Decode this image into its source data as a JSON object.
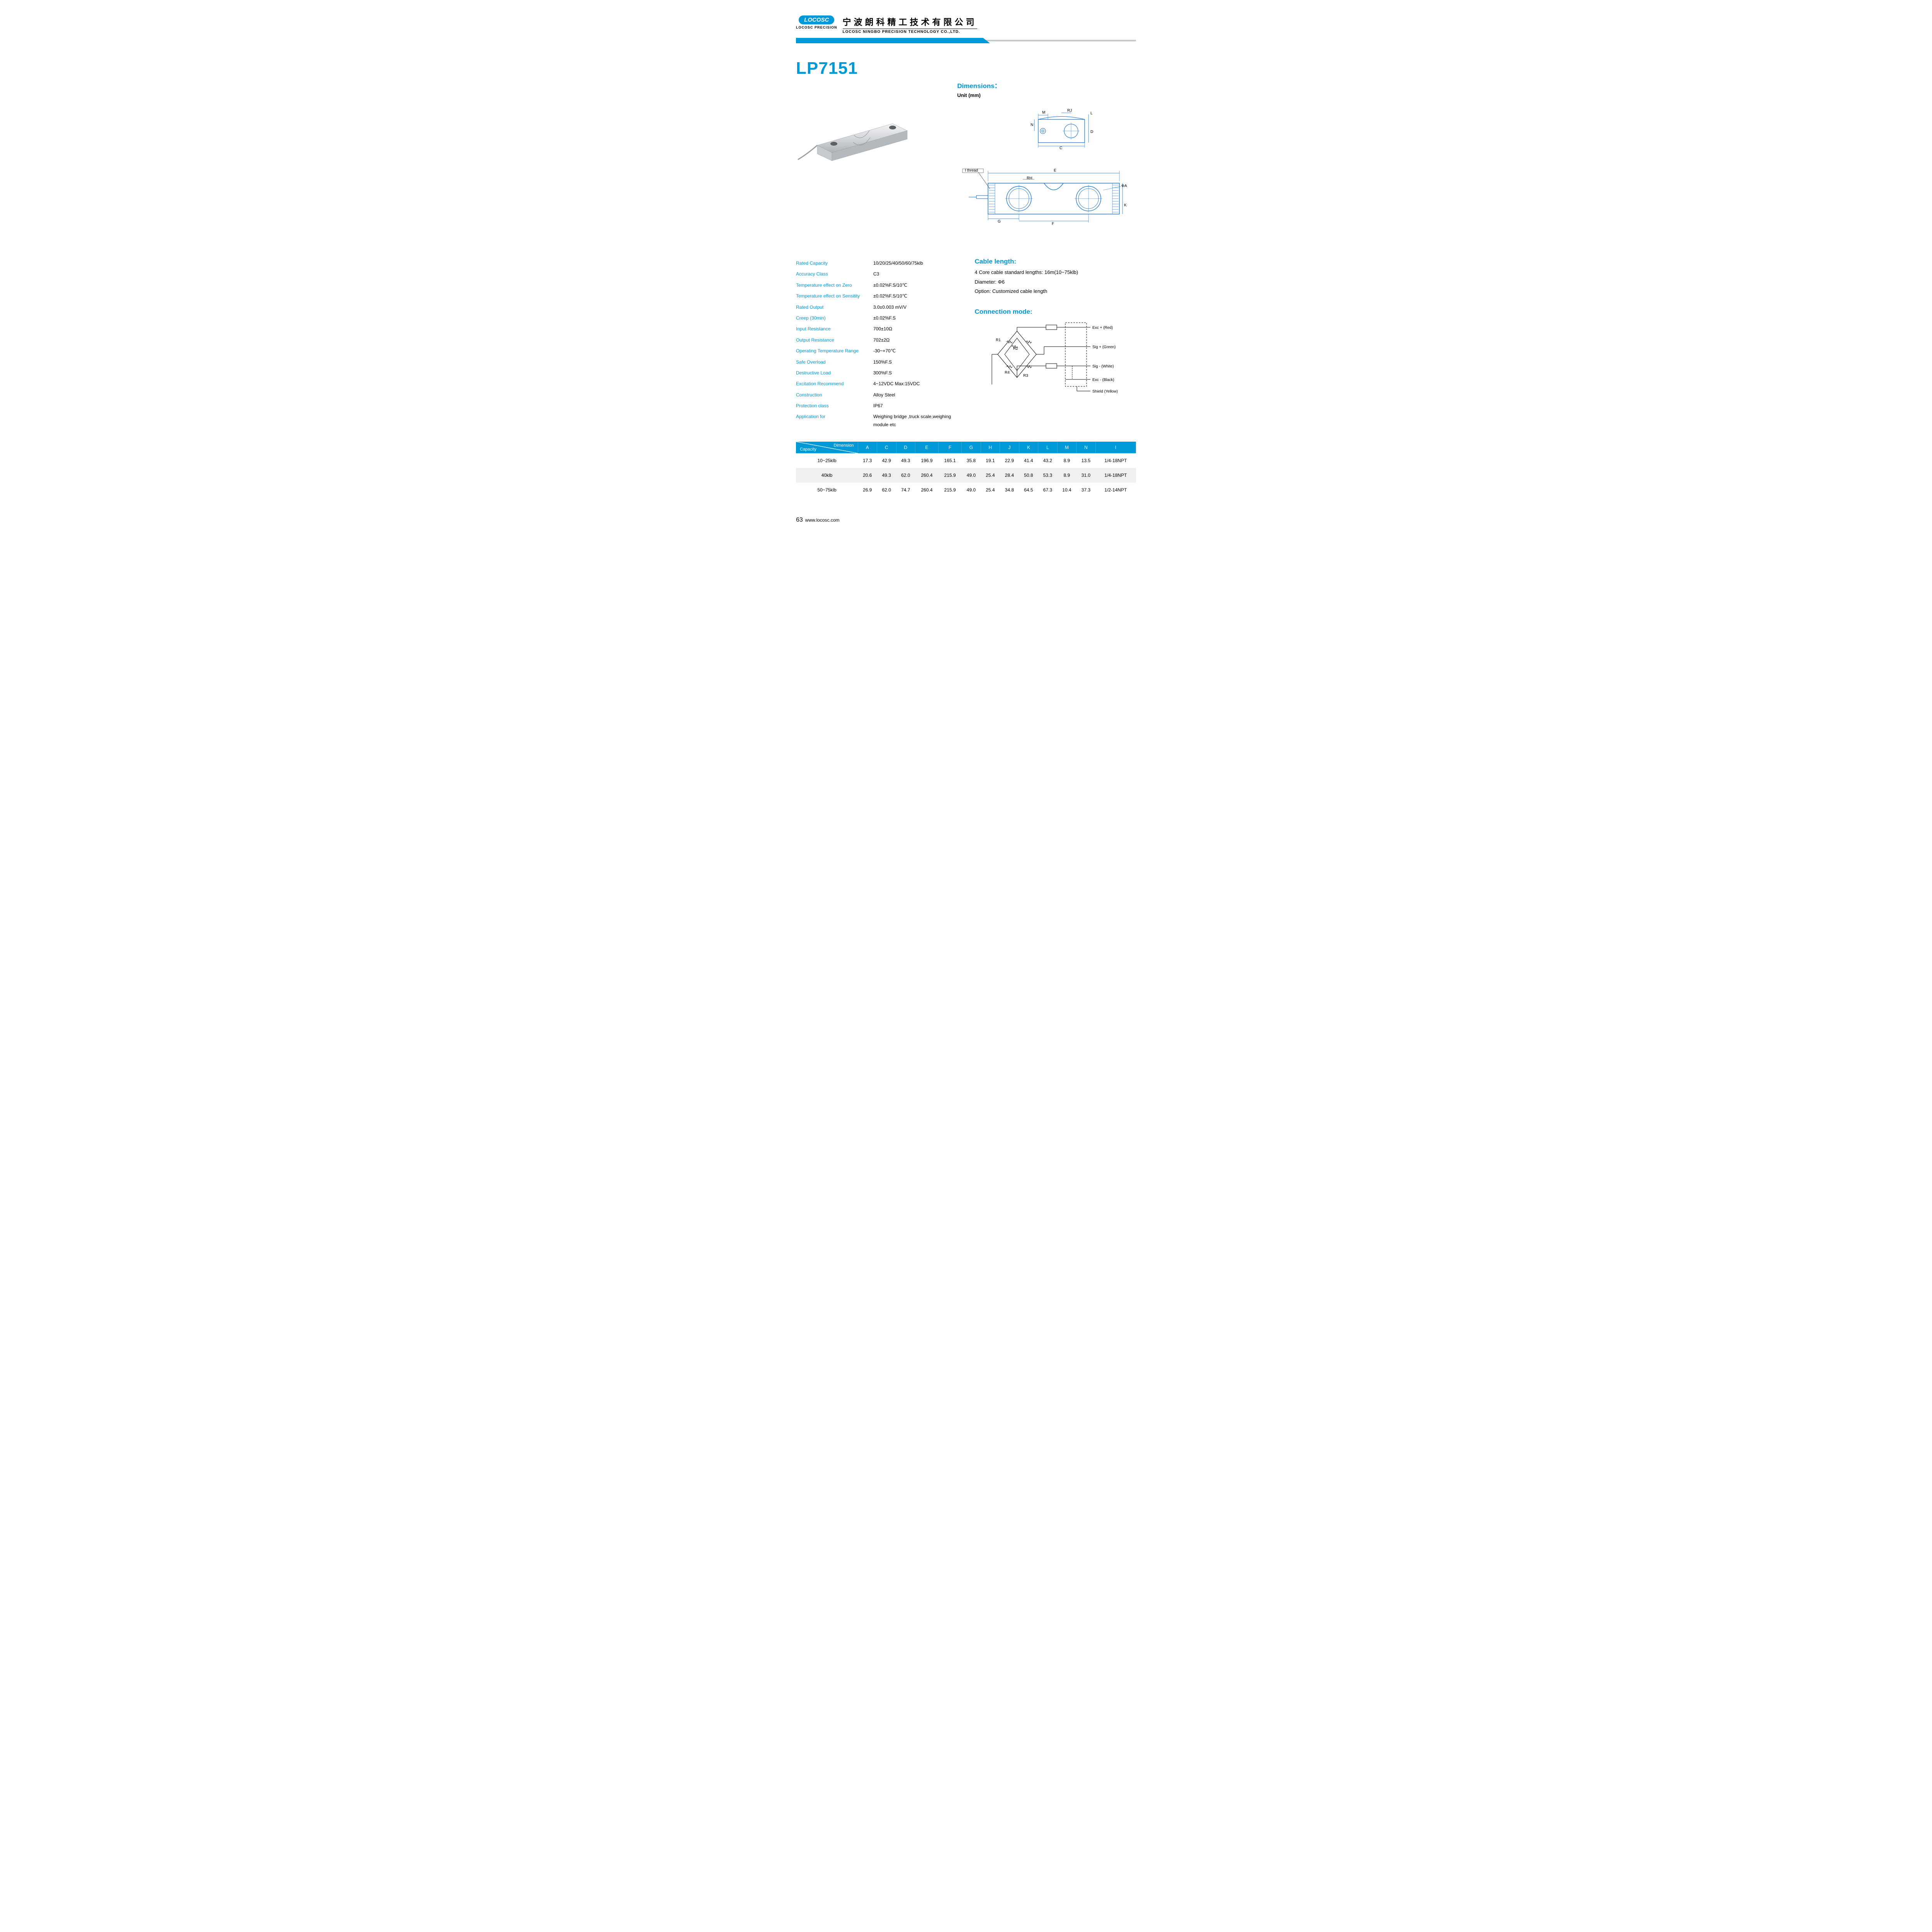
{
  "header": {
    "logo_text": "LOCOSC",
    "logo_sub": "LOCOSC PRECISION",
    "company_cn": "宁波朗科精工技术有限公司",
    "company_en": "LOCOSC NINGBO PRECISION TECHNOLOGY CO.,LTD."
  },
  "product_title": "LP7151",
  "dimensions_heading": "Dimensions：",
  "unit_label": "Unit (mm)",
  "drawing_labels": {
    "top_RJ": "RJ",
    "top_M": "M",
    "top_N": "N",
    "top_C": "C",
    "top_L": "L",
    "top_D": "D",
    "side_I_thread": "I    thread",
    "side_E": "E",
    "side_RH": "RH",
    "side_phiA": "ΦA",
    "side_K": "K",
    "side_G": "G",
    "side_F": "F"
  },
  "specs": [
    {
      "label": "Rated Capacity",
      "value": "10/20/25/40/50/60/75klb"
    },
    {
      "label": "Accuracy Class",
      "value": "C3"
    },
    {
      "label": "Temperature effect on Zero",
      "value": "±0.02%F.S/10℃"
    },
    {
      "label": "Temperature effect on Sensitity",
      "value": "±0.02%F.S/10℃"
    },
    {
      "label": "Rated Output",
      "value": "3.0±0.003 mV/V"
    },
    {
      "label": "Creep (30min)",
      "value": "±0.02%F.S"
    },
    {
      "label": "Input Resistance",
      "value": "700±10Ω"
    },
    {
      "label": "Output Resistance",
      "value": "702±2Ω"
    },
    {
      "label": "Operating Temperature Range",
      "value": "-30~+70℃"
    },
    {
      "label": "Safe Overload",
      "value": "150%F.S"
    },
    {
      "label": "Destructive Load",
      "value": "300%F.S"
    },
    {
      "label": "Excitation Recommend",
      "value": "4~12VDC    Max:15VDC"
    },
    {
      "label": "Construction",
      "value": "Alloy Steel"
    },
    {
      "label": "Protection class",
      "value": "IP67"
    },
    {
      "label": "Application for",
      "value": "Weighing bridge ,truck scale,weighing module etc"
    }
  ],
  "cable": {
    "heading": "Cable length:",
    "lines": [
      "4 Core cable standard lengths: 16m(10~75klb)",
      "Diameter: Φ6",
      "Option: Customized cable length"
    ]
  },
  "connection": {
    "heading": "Connection mode:",
    "labels": {
      "R1": "R1",
      "R2": "R2",
      "R3": "R3",
      "R4": "R4",
      "R5": "R5",
      "R6": "R6",
      "exc_p": "Exc + (Red)",
      "sig_p": "Sig + (Green)",
      "sig_n": "Sig - (White)",
      "exc_n": "Exc - (Black)",
      "shield": "Shield  (Yellow)"
    }
  },
  "dim_table": {
    "corner_top": "Dimension",
    "corner_bot": "Capacity",
    "cols": [
      "A",
      "C",
      "D",
      "E",
      "F",
      "G",
      "H",
      "J",
      "K",
      "L",
      "M",
      "N",
      "I"
    ],
    "rows": [
      {
        "cap": "10~25klb",
        "vals": [
          "17.3",
          "42.9",
          "49.3",
          "196.9",
          "165.1",
          "35.8",
          "19.1",
          "22.9",
          "41.4",
          "43.2",
          "8.9",
          "13.5",
          "1/4-18NPT"
        ]
      },
      {
        "cap": "40klb",
        "vals": [
          "20.6",
          "49.3",
          "62.0",
          "260.4",
          "215.9",
          "49.0",
          "25.4",
          "28.4",
          "50.8",
          "53.3",
          "8.9",
          "31.0",
          "1/4-18NPT"
        ]
      },
      {
        "cap": "50~75klb",
        "vals": [
          "26.9",
          "62.0",
          "74.7",
          "260.4",
          "215.9",
          "49.0",
          "25.4",
          "34.8",
          "64.5",
          "67.3",
          "10.4",
          "37.3",
          "1/2-14NPT"
        ]
      }
    ]
  },
  "footer": {
    "page": "63",
    "url": "www.locosc.com"
  },
  "colors": {
    "brand_blue": "#0099d8",
    "grey_bar": "#c5c9cc",
    "row_alt": "#eef0f1",
    "metal_light": "#e6e8ea",
    "metal_dark": "#b8bcc0"
  }
}
